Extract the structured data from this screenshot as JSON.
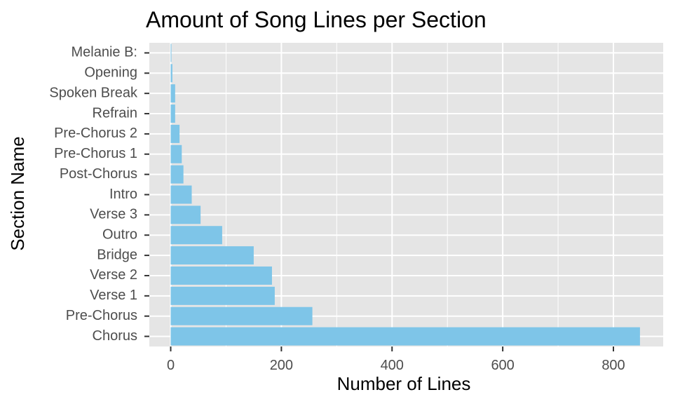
{
  "chart_data": {
    "type": "bar",
    "orientation": "horizontal",
    "title": "Amount of Song Lines per Section",
    "xlabel": "Number of Lines",
    "ylabel": "Section Name",
    "categories": [
      "Chorus",
      "Pre-Chorus",
      "Verse 1",
      "Verse 2",
      "Bridge",
      "Outro",
      "Verse 3",
      "Intro",
      "Post-Chorus",
      "Pre-Chorus 1",
      "Pre-Chorus 2",
      "Refrain",
      "Spoken Break",
      "Opening",
      "Melanie B:"
    ],
    "values": [
      848,
      256,
      188,
      183,
      150,
      93,
      54,
      38,
      23,
      20,
      16,
      8,
      8,
      3,
      1
    ],
    "xlim": [
      0,
      880
    ],
    "xticks": [
      0,
      200,
      400,
      600,
      800
    ],
    "grid": true,
    "bar_color": "#7ec5e8",
    "panel_background": "#e5e5e5"
  }
}
